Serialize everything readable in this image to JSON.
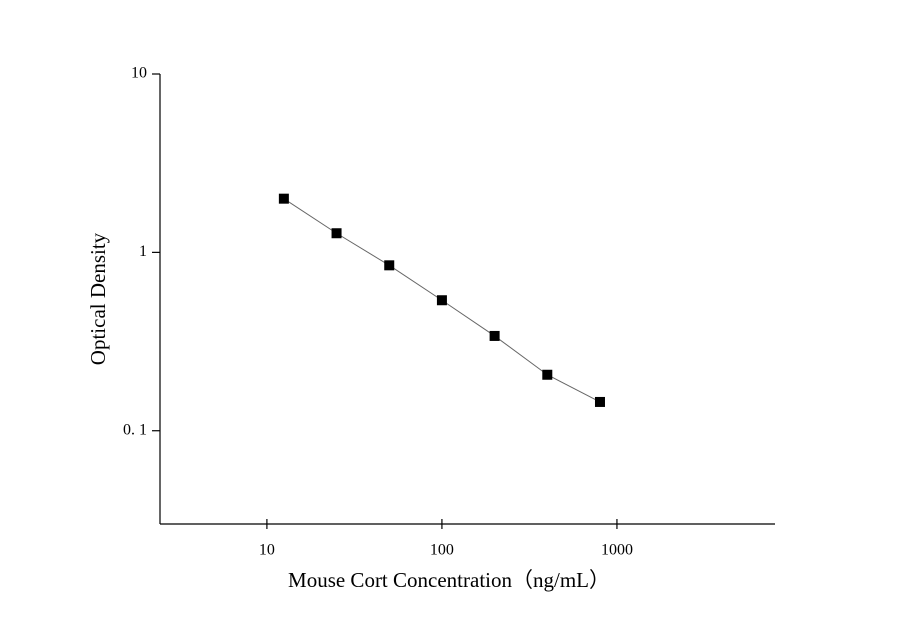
{
  "chart_data": {
    "type": "scatter",
    "x_label": "Mouse Cort Concentration（ng/mL）",
    "y_label": "Optical Density",
    "x": [
      12.5,
      25,
      50,
      100,
      200,
      400,
      800
    ],
    "series": [
      {
        "color": "#000000",
        "values": [
          2.0,
          1.28,
          0.846,
          0.539,
          0.34,
          0.206,
          0.145
        ]
      }
    ],
    "xlim": [
      2.45,
      8000
    ],
    "ylim": [
      0.03,
      10
    ],
    "xticks": [
      10,
      100,
      1000
    ],
    "yticks": [
      {
        "value": 0.1,
        "label": "0. 1"
      },
      1,
      10
    ],
    "xscale": "log",
    "yscale": "log",
    "line_color": "#666666"
  }
}
